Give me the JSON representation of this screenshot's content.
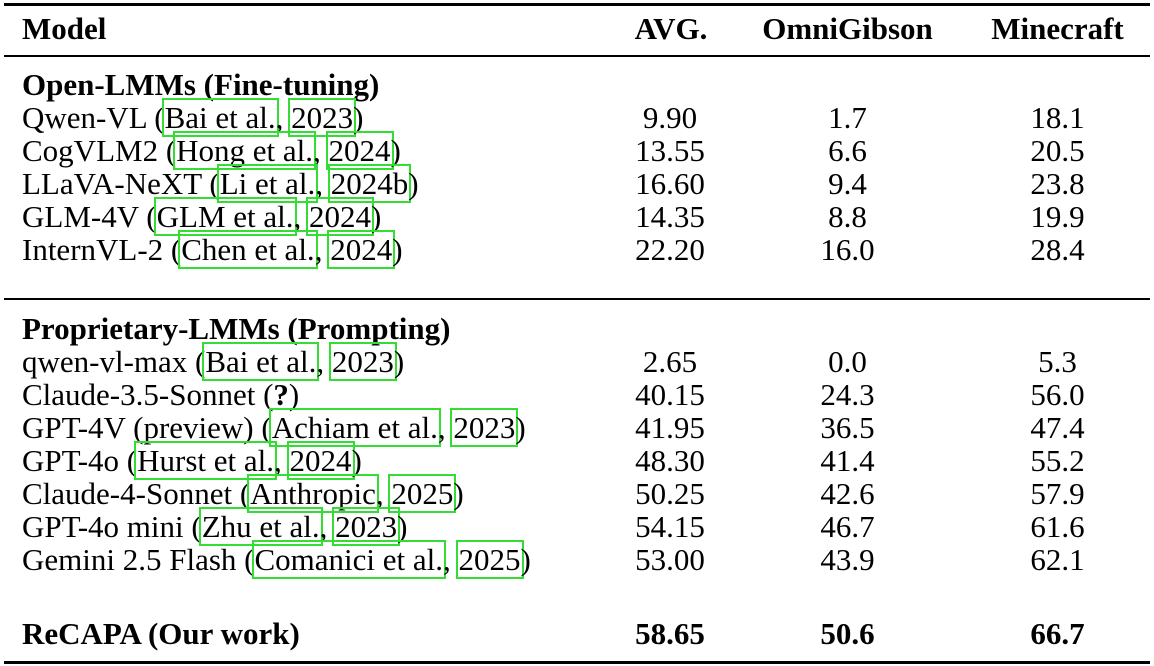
{
  "header": {
    "model": "Model",
    "avg": "AVG.",
    "omnigibson": "OmniGibson",
    "minecraft": "Minecraft"
  },
  "sections": [
    {
      "title": "Open-LMMs (Fine-tuning)",
      "rows": [
        {
          "name": "Qwen-VL",
          "author": "Bai et al.",
          "year": "2023",
          "avg": "9.90",
          "omni": "1.7",
          "mine": "18.1"
        },
        {
          "name": "CogVLM2",
          "author": "Hong et al.",
          "year": "2024",
          "avg": "13.55",
          "omni": "6.6",
          "mine": "20.5"
        },
        {
          "name": "LLaVA-NeXT",
          "author": "Li et al.",
          "year": "2024b",
          "avg": "16.60",
          "omni": "9.4",
          "mine": "23.8"
        },
        {
          "name": "GLM-4V",
          "author": "GLM et al.",
          "year": "2024",
          "avg": "14.35",
          "omni": "8.8",
          "mine": "19.9"
        },
        {
          "name": "InternVL-2",
          "author": "Chen et al.",
          "year": "2024",
          "avg": "22.20",
          "omni": "16.0",
          "mine": "28.4"
        }
      ]
    },
    {
      "title": "Proprietary-LMMs (Prompting)",
      "rows": [
        {
          "name": "qwen-vl-max",
          "author": "Bai et al.",
          "year": "2023",
          "avg": "2.65",
          "omni": "0.0",
          "mine": "5.3"
        },
        {
          "name": "Claude-3.5-Sonnet",
          "missing": "?",
          "avg": "40.15",
          "omni": "24.3",
          "mine": "56.0"
        },
        {
          "name": "GPT-4V (preview)",
          "author": "Achiam et al.",
          "year": "2023",
          "avg": "41.95",
          "omni": "36.5",
          "mine": "47.4"
        },
        {
          "name": "GPT-4o",
          "author": "Hurst et al.",
          "year": "2024",
          "avg": "48.30",
          "omni": "41.4",
          "mine": "55.2"
        },
        {
          "name": "Claude-4-Sonnet",
          "author": "Anthropic",
          "year": "2025",
          "avg": "50.25",
          "omni": "42.6",
          "mine": "57.9"
        },
        {
          "name": "GPT-4o mini",
          "author": "Zhu et al.",
          "year": "2023",
          "avg": "54.15",
          "omni": "46.7",
          "mine": "61.6"
        },
        {
          "name": "Gemini 2.5 Flash",
          "author": "Comanici et al.",
          "year": "2025",
          "avg": "53.00",
          "omni": "43.9",
          "mine": "62.1"
        }
      ]
    }
  ],
  "ours": {
    "name": "ReCAPA (Our work)",
    "avg": "58.65",
    "omni": "50.6",
    "mine": "66.7"
  }
}
